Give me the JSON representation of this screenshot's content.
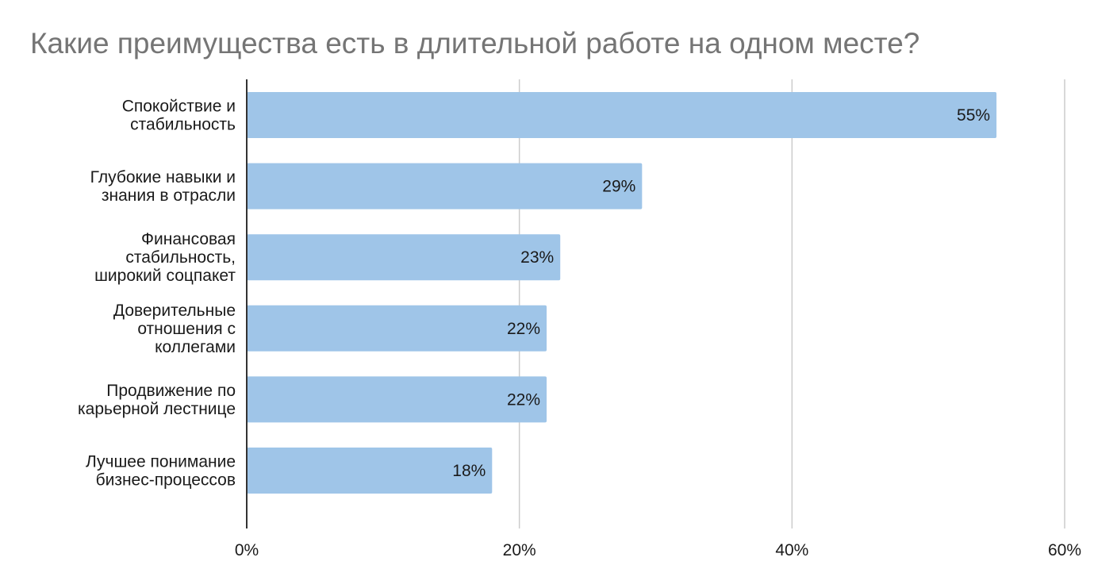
{
  "chart_data": {
    "type": "bar",
    "orientation": "horizontal",
    "title": "Какие преимущества есть в длительной работе на одном месте?",
    "categories": [
      "Спокойствие и стабильность",
      "Глубокие навыки и знания в отрасли",
      "Финансовая стабильность, широкий соцпакет",
      "Доверительные отношения с коллегами",
      "Продвижение по карьерной лестнице",
      "Лучшее понимание бизнес-процессов"
    ],
    "category_lines": [
      [
        "Спокойствие и",
        "стабильность"
      ],
      [
        "Глубокие навыки и",
        "знания в отрасли"
      ],
      [
        "Финансовая",
        "стабильность,",
        "широкий соцпакет"
      ],
      [
        "Доверительные",
        "отношения с",
        "коллегами"
      ],
      [
        "Продвижение по",
        "карьерной лестнице"
      ],
      [
        "Лучшее понимание",
        "бизнес-процессов"
      ]
    ],
    "values": [
      55,
      29,
      23,
      22,
      22,
      18
    ],
    "value_labels": [
      "55%",
      "29%",
      "23%",
      "22%",
      "22%",
      "18%"
    ],
    "xlim": [
      0,
      60
    ],
    "x_ticks": [
      0,
      20,
      40,
      60
    ],
    "x_tick_labels": [
      "0%",
      "20%",
      "40%",
      "60%"
    ],
    "grid": true,
    "bar_color": "#9fc5e8",
    "title_color": "#757575",
    "xlabel": "",
    "ylabel": ""
  }
}
